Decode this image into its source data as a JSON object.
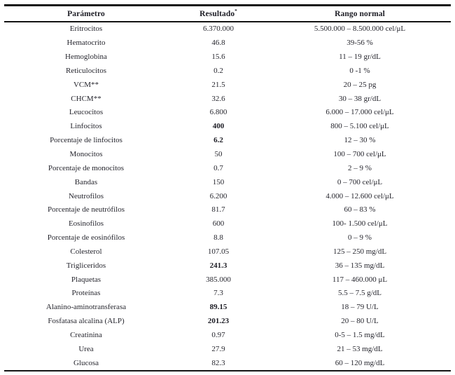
{
  "table": {
    "headers": [
      {
        "label": "Parámetro",
        "superscript": ""
      },
      {
        "label": "Resultado",
        "superscript": "*"
      },
      {
        "label": "Rango normal",
        "superscript": ""
      }
    ],
    "rows": [
      {
        "param": "Eritrocitos",
        "result": "6.370.000",
        "result_bold": false,
        "range": "5.500.000 – 8.500.000 cel/μL"
      },
      {
        "param": "Hematocrito",
        "result": "46.8",
        "result_bold": false,
        "range": "39-56 %"
      },
      {
        "param": "Hemoglobina",
        "result": "15.6",
        "result_bold": false,
        "range": "11 – 19 gr/dL"
      },
      {
        "param": "Reticulocitos",
        "result": "0.2",
        "result_bold": false,
        "range": "0 -1 %"
      },
      {
        "param": "VCM**",
        "result": "21.5",
        "result_bold": false,
        "range": "20 – 25 pg"
      },
      {
        "param": "CHCM**",
        "result": "32.6",
        "result_bold": false,
        "range": "30 – 38 gr/dL"
      },
      {
        "param": "Leucocitos",
        "result": "6.800",
        "result_bold": false,
        "range": "6.000 – 17.000 cel/μL"
      },
      {
        "param": "Linfocitos",
        "result": "400",
        "result_bold": true,
        "range": "800 – 5.100 cel/μL"
      },
      {
        "param": "Porcentaje de linfocitos",
        "result": "6.2",
        "result_bold": true,
        "range": "12 – 30 %"
      },
      {
        "param": "Monocitos",
        "result": "50",
        "result_bold": false,
        "range": "100 – 700 cel/μL"
      },
      {
        "param": "Porcentaje de monocitos",
        "result": "0.7",
        "result_bold": false,
        "range": "2 – 9 %"
      },
      {
        "param": "Bandas",
        "result": "150",
        "result_bold": false,
        "range": "0 – 700 cel/μL"
      },
      {
        "param": "Neutrofilos",
        "result": "6.200",
        "result_bold": false,
        "range": "4.000 – 12.600 cel/μL"
      },
      {
        "param": "Porcentaje de neutrófilos",
        "result": "81.7",
        "result_bold": false,
        "range": "60 – 83 %"
      },
      {
        "param": "Eosinofilos",
        "result": "600",
        "result_bold": false,
        "range": "100- 1.500 cel/μL"
      },
      {
        "param": "Porcentaje de eosinófilos",
        "result": "8.8",
        "result_bold": false,
        "range": "0 – 9 %"
      },
      {
        "param": "Colesterol",
        "result": "107.05",
        "result_bold": false,
        "range": "125 – 250 mg/dL"
      },
      {
        "param": "Trigliceridos",
        "result": "241.3",
        "result_bold": true,
        "range": "36 – 135 mg/dL"
      },
      {
        "param": "Plaquetas",
        "result": "385.000",
        "result_bold": false,
        "range": "117 – 460.000 μL"
      },
      {
        "param": "Proteínas",
        "result": "7.3",
        "result_bold": false,
        "range": "5.5 – 7.5 g/dL"
      },
      {
        "param": "Alanino-aminotransferasa",
        "result": "89.15",
        "result_bold": true,
        "range": "18 – 79 U/L"
      },
      {
        "param": "Fosfatasa alcalina (ALP)",
        "result": "201.23",
        "result_bold": true,
        "range": "20 – 80 U/L"
      },
      {
        "param": "Creatinina",
        "result": "0.97",
        "result_bold": false,
        "range": "0-5 – 1.5 mg/dL"
      },
      {
        "param": "Urea",
        "result": "27.9",
        "result_bold": false,
        "range": "21 – 53 mg/dL"
      },
      {
        "param": "Glucosa",
        "result": "82.3",
        "result_bold": false,
        "range": "60 – 120 mg/dL"
      }
    ]
  }
}
